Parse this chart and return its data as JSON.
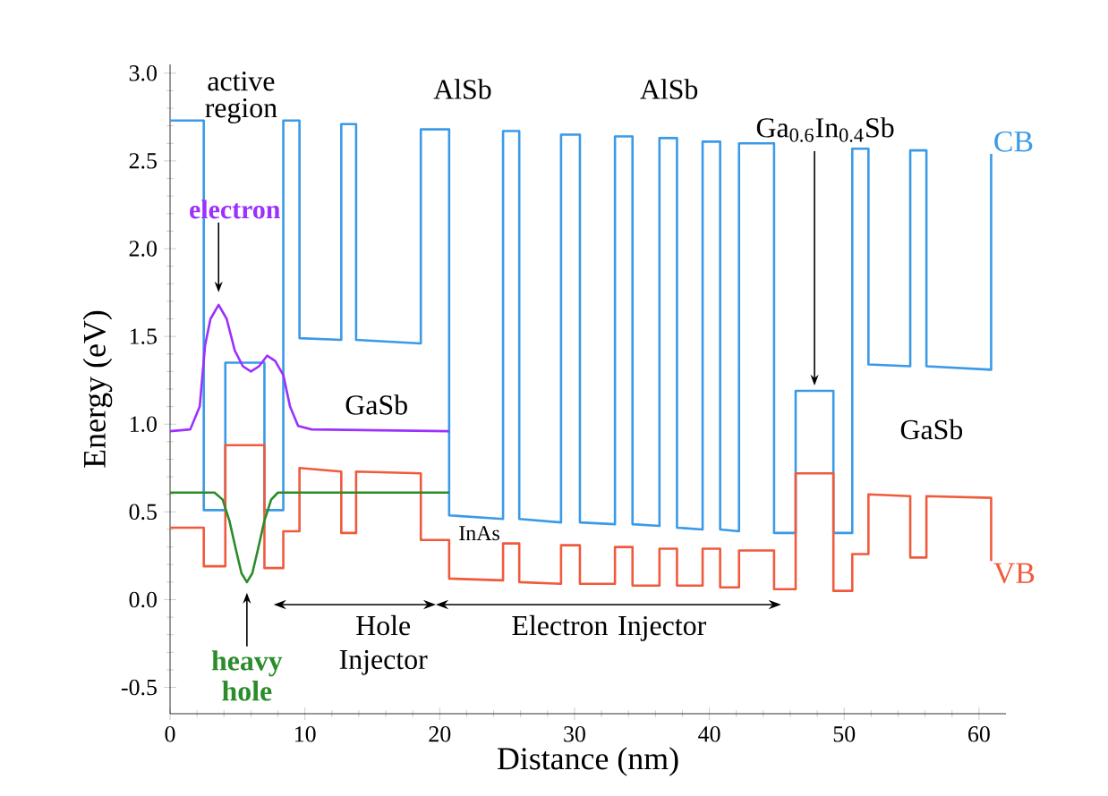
{
  "chart_data": {
    "type": "line",
    "xlabel": "Distance (nm)",
    "ylabel": "Energy (eV)",
    "xlim": [
      0,
      62
    ],
    "ylim": [
      -0.65,
      3.05
    ],
    "xticks": [
      0,
      10,
      20,
      30,
      40,
      50,
      60
    ],
    "yticks": [
      {
        "value": -0.5,
        "label": "-0.5"
      },
      {
        "value": 0,
        "label": "0.0"
      },
      {
        "value": 0.5,
        "label": "0.5"
      },
      {
        "value": 1,
        "label": "1.0"
      },
      {
        "value": 1.5,
        "label": "1.5"
      },
      {
        "value": 2,
        "label": "2.0"
      },
      {
        "value": 2.5,
        "label": "2.5"
      },
      {
        "value": 3,
        "label": "3.0"
      }
    ],
    "series": [
      {
        "name": "CB",
        "color": "#3a9ae8",
        "x": [
          0,
          2.5,
          2.5,
          4.1,
          4.1,
          7.0,
          7.0,
          8.4,
          8.4,
          9.6,
          9.6,
          12.7,
          12.7,
          13.8,
          13.8,
          18.6,
          18.6,
          20.7,
          20.7,
          24.7,
          24.7,
          25.9,
          25.9,
          29.0,
          29.0,
          30.4,
          30.4,
          33.0,
          33.0,
          34.3,
          34.3,
          36.3,
          36.3,
          37.6,
          37.6,
          39.5,
          39.5,
          40.8,
          40.8,
          42.2,
          42.2,
          44.8,
          44.8,
          46.4,
          46.4,
          49.2,
          49.2,
          50.6,
          50.6,
          51.8,
          51.8,
          54.9,
          54.9,
          56.1,
          56.1,
          60.9,
          60.9
        ],
        "values": [
          2.73,
          2.73,
          0.51,
          0.51,
          1.35,
          1.35,
          0.51,
          0.51,
          2.73,
          2.73,
          1.49,
          1.48,
          2.71,
          2.71,
          1.48,
          1.46,
          2.68,
          2.68,
          0.48,
          0.46,
          2.67,
          2.67,
          0.46,
          0.44,
          2.65,
          2.65,
          0.44,
          0.43,
          2.64,
          2.64,
          0.43,
          0.42,
          2.63,
          2.63,
          0.41,
          0.4,
          2.61,
          2.61,
          0.4,
          0.39,
          2.6,
          2.6,
          0.38,
          0.38,
          1.19,
          1.19,
          0.38,
          0.38,
          2.57,
          2.57,
          1.34,
          1.33,
          2.56,
          2.56,
          1.33,
          1.31,
          2.54
        ]
      },
      {
        "name": "VB",
        "color": "#f05a3c",
        "x": [
          0,
          2.5,
          2.5,
          4.1,
          4.1,
          7.0,
          7.0,
          8.4,
          8.4,
          9.6,
          9.6,
          12.7,
          12.7,
          13.8,
          13.8,
          18.6,
          18.6,
          20.7,
          20.7,
          24.7,
          24.7,
          25.9,
          25.9,
          29.0,
          29.0,
          30.4,
          30.4,
          33.0,
          33.0,
          34.3,
          34.3,
          36.3,
          36.3,
          37.6,
          37.6,
          39.5,
          39.5,
          40.8,
          40.8,
          42.2,
          42.2,
          44.8,
          44.8,
          46.4,
          46.4,
          49.2,
          49.2,
          50.6,
          50.6,
          51.8,
          51.8,
          54.9,
          54.9,
          56.1,
          56.1,
          60.9,
          60.9
        ],
        "values": [
          0.41,
          0.41,
          0.19,
          0.19,
          0.88,
          0.88,
          0.18,
          0.18,
          0.39,
          0.39,
          0.75,
          0.73,
          0.38,
          0.38,
          0.73,
          0.72,
          0.34,
          0.34,
          0.12,
          0.11,
          0.32,
          0.32,
          0.1,
          0.09,
          0.31,
          0.31,
          0.09,
          0.09,
          0.3,
          0.3,
          0.08,
          0.08,
          0.29,
          0.29,
          0.08,
          0.08,
          0.29,
          0.29,
          0.07,
          0.07,
          0.28,
          0.28,
          0.06,
          0.06,
          0.72,
          0.72,
          0.05,
          0.05,
          0.26,
          0.26,
          0.6,
          0.59,
          0.24,
          0.24,
          0.59,
          0.58,
          0.22
        ]
      },
      {
        "name": "electron",
        "color": "#9b30ff",
        "x": [
          0,
          1.5,
          2.2,
          2.6,
          3.0,
          3.6,
          4.2,
          4.8,
          5.4,
          6.0,
          6.6,
          7.2,
          7.8,
          8.4,
          8.9,
          9.5,
          10.5,
          20.7
        ],
        "values": [
          0.96,
          0.97,
          1.1,
          1.45,
          1.6,
          1.68,
          1.6,
          1.42,
          1.33,
          1.3,
          1.33,
          1.39,
          1.36,
          1.28,
          1.1,
          0.99,
          0.97,
          0.96
        ]
      },
      {
        "name": "heavy hole",
        "color": "#2a8c2a",
        "x": [
          0,
          3.3,
          3.9,
          4.4,
          4.9,
          5.3,
          5.7,
          6.1,
          6.5,
          7.0,
          7.5,
          8.0,
          20.7
        ],
        "values": [
          0.61,
          0.61,
          0.57,
          0.45,
          0.28,
          0.15,
          0.1,
          0.15,
          0.28,
          0.45,
          0.57,
          0.61,
          0.61
        ]
      }
    ],
    "annotations": [
      "active region",
      "AlSb",
      "AlSb",
      {
        "text": "Ga$_{0.6}$In$_{0.4}$Sb",
        "x": 47.8,
        "y": 1.19
      },
      "GaSb",
      "GaSb",
      "InAs",
      "Hole Injector",
      "Electron Injector"
    ]
  }
}
